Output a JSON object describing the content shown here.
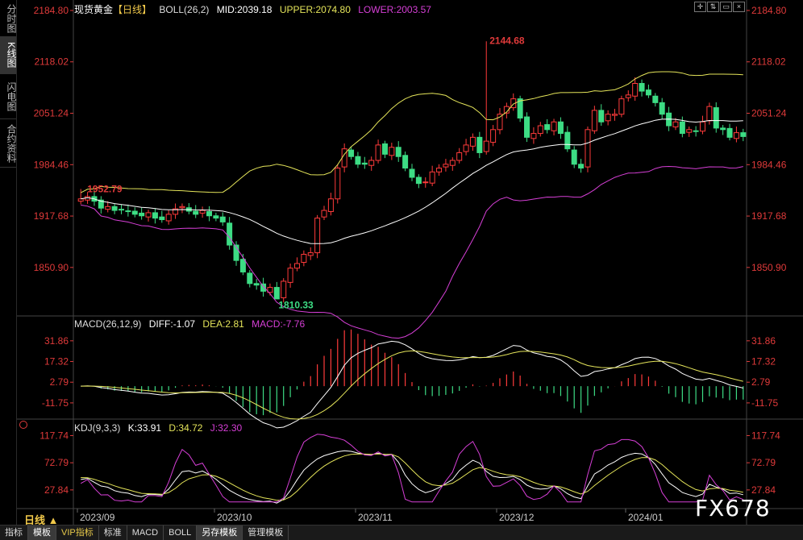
{
  "sidebar": {
    "tabs": [
      {
        "label": "分时图",
        "active": false
      },
      {
        "label": "K线图",
        "active": true
      },
      {
        "label": "闪电图",
        "active": false
      },
      {
        "label": "合约资料",
        "active": false
      }
    ]
  },
  "header": {
    "symbol": "现货黄金",
    "period": "【日线】",
    "boll": "BOLL(26,2)",
    "mid": "MID:2039.18",
    "upper": "UPPER:2074.80",
    "lower": "LOWER:2003.57"
  },
  "macd_header": {
    "name": "MACD(26,12,9)",
    "diff": "DIFF:-1.07",
    "dea": "DEA:2.81",
    "macd": "MACD:-7.76"
  },
  "kdj_header": {
    "name": "KDJ(9,3,3)",
    "k": "K:33.91",
    "d": "D:34.72",
    "j": "J:32.30"
  },
  "colors": {
    "up": "#ff3b3b",
    "down": "#3ddc84",
    "mid": "#ffffff",
    "upper": "#e5e55a",
    "lower": "#d63fd6",
    "axis": "#e03a3a"
  },
  "annotations": {
    "high": "2144.68",
    "low": "1810.33",
    "first": "1952.79"
  },
  "period_tag": "日线 ▲",
  "watermark": "FX678",
  "bottom_tabs": [
    {
      "label": "指标",
      "active": false
    },
    {
      "label": "模板",
      "active": true
    },
    {
      "label": "VIP指标",
      "active": false,
      "vip": true
    },
    {
      "label": "标准",
      "active": false
    },
    {
      "label": "MACD",
      "active": false
    },
    {
      "label": "BOLL",
      "active": false
    },
    {
      "label": "另存模板",
      "active": true
    },
    {
      "label": "管理模板",
      "active": false
    }
  ],
  "chart_data": [
    {
      "type": "candlestick",
      "title": "现货黄金【日线】",
      "ylim": [
        1790,
        2190
      ],
      "y_ticks": [
        "2184.80",
        "2118.02",
        "2051.24",
        "1984.46",
        "1917.68",
        "1850.90"
      ],
      "x_ticks": [
        "2023/09",
        "2023/10",
        "2023/11",
        "2023/12",
        "2024/01"
      ],
      "closes": [
        1940,
        1943,
        1937,
        1928,
        1930,
        1925,
        1926,
        1924,
        1920,
        1918,
        1922,
        1915,
        1913,
        1920,
        1927,
        1930,
        1924,
        1920,
        1925,
        1918,
        1915,
        1910,
        1880,
        1860,
        1845,
        1830,
        1828,
        1820,
        1825,
        1810,
        1833,
        1850,
        1856,
        1868,
        1870,
        1915,
        1925,
        1940,
        1980,
        2005,
        1995,
        1985,
        1985,
        1990,
        2010,
        1998,
        2007,
        1995,
        1980,
        1968,
        1960,
        1962,
        1975,
        1980,
        1985,
        1990,
        2000,
        2010,
        2020,
        2000,
        2015,
        2030,
        2050,
        2060,
        2070,
        2045,
        2020,
        2025,
        2035,
        2030,
        2040,
        2025,
        2005,
        1985,
        1980,
        2030,
        2055,
        2040,
        2050,
        2050,
        2070,
        2075,
        2090,
        2080,
        2075,
        2065,
        2050,
        2035,
        2040,
        2025,
        2030,
        2028,
        2040,
        2060,
        2032,
        2030,
        2020,
        2026,
        2021
      ],
      "highs_annot": [
        {
          "label": "2144.68",
          "value": 2144.68
        },
        {
          "label": "1810.33",
          "value": 1810.33
        },
        {
          "label": "1952.79",
          "value": 1952.79
        }
      ],
      "series": [
        {
          "name": "MID",
          "last": 2039.18
        },
        {
          "name": "UPPER",
          "last": 2074.8
        },
        {
          "name": "LOWER",
          "last": 2003.57
        }
      ]
    },
    {
      "type": "bar",
      "title": "MACD(26,12,9)",
      "y_ticks": [
        "31.86",
        "17.32",
        "2.79",
        "-11.75"
      ],
      "series": [
        {
          "name": "DIFF",
          "last": -1.07
        },
        {
          "name": "DEA",
          "last": 2.81
        },
        {
          "name": "MACD",
          "last": -7.76
        }
      ]
    },
    {
      "type": "line",
      "title": "KDJ(9,3,3)",
      "y_ticks": [
        "117.74",
        "72.79",
        "27.84"
      ],
      "series": [
        {
          "name": "K",
          "last": 33.91
        },
        {
          "name": "D",
          "last": 34.72
        },
        {
          "name": "J",
          "last": 32.3
        }
      ]
    }
  ]
}
